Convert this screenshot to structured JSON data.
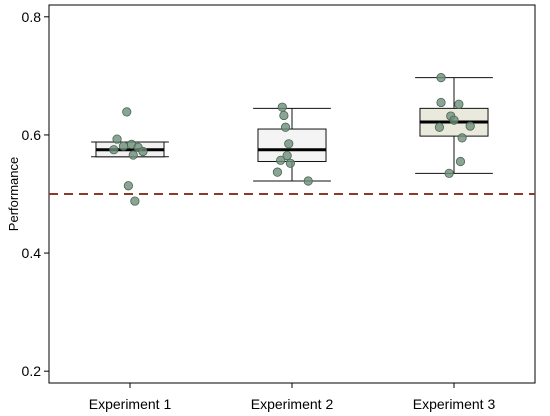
{
  "chart_data": {
    "type": "box",
    "title": "",
    "xlabel": "",
    "ylabel": "Performance",
    "ylim": [
      0.18,
      0.82
    ],
    "yticks": [
      0.2,
      0.4,
      0.6,
      0.8
    ],
    "ytick_labels": [
      "0.2",
      "0.4",
      "0.6",
      "0.8"
    ],
    "categories": [
      "Experiment 1",
      "Experiment 2",
      "Experiment 3"
    ],
    "reference_line": {
      "value": 0.5,
      "style": "dashed",
      "color": "#8b3a2a"
    },
    "grid": false,
    "legend": "none",
    "colors": {
      "box_fill": [
        "#f1f1f1",
        "#f4f4f4",
        "#e9e9dc"
      ],
      "box_stroke": "#111111",
      "median": "#000000",
      "point_fill": "#6e8e7a",
      "point_stroke": "#4a6354"
    },
    "boxes": [
      {
        "category": "Experiment 1",
        "whisker_low": 0.563,
        "q1": 0.563,
        "median": 0.575,
        "q3": 0.588,
        "whisker_high": 0.588
      },
      {
        "category": "Experiment 2",
        "whisker_low": 0.522,
        "q1": 0.555,
        "median": 0.575,
        "q3": 0.61,
        "whisker_high": 0.645
      },
      {
        "category": "Experiment 3",
        "whisker_low": 0.535,
        "q1": 0.598,
        "median": 0.622,
        "q3": 0.645,
        "whisker_high": 0.697
      }
    ],
    "points": [
      [
        {
          "dx": -0.02,
          "y": 0.639
        },
        {
          "dx": -0.08,
          "y": 0.593
        },
        {
          "dx": 0.01,
          "y": 0.584
        },
        {
          "dx": -0.04,
          "y": 0.581
        },
        {
          "dx": 0.05,
          "y": 0.579
        },
        {
          "dx": -0.1,
          "y": 0.575
        },
        {
          "dx": 0.08,
          "y": 0.572
        },
        {
          "dx": 0.02,
          "y": 0.566
        },
        {
          "dx": -0.01,
          "y": 0.514
        },
        {
          "dx": 0.03,
          "y": 0.488
        }
      ],
      [
        {
          "dx": -0.06,
          "y": 0.647
        },
        {
          "dx": -0.05,
          "y": 0.633
        },
        {
          "dx": -0.04,
          "y": 0.613
        },
        {
          "dx": -0.02,
          "y": 0.585
        },
        {
          "dx": -0.03,
          "y": 0.565
        },
        {
          "dx": -0.07,
          "y": 0.557
        },
        {
          "dx": -0.01,
          "y": 0.552
        },
        {
          "dx": -0.09,
          "y": 0.537
        },
        {
          "dx": 0.1,
          "y": 0.522
        }
      ],
      [
        {
          "dx": -0.08,
          "y": 0.697
        },
        {
          "dx": -0.08,
          "y": 0.655
        },
        {
          "dx": 0.03,
          "y": 0.652
        },
        {
          "dx": -0.02,
          "y": 0.632
        },
        {
          "dx": 0.0,
          "y": 0.625
        },
        {
          "dx": 0.1,
          "y": 0.615
        },
        {
          "dx": -0.09,
          "y": 0.613
        },
        {
          "dx": 0.05,
          "y": 0.595
        },
        {
          "dx": 0.04,
          "y": 0.555
        },
        {
          "dx": -0.03,
          "y": 0.535
        }
      ]
    ]
  }
}
